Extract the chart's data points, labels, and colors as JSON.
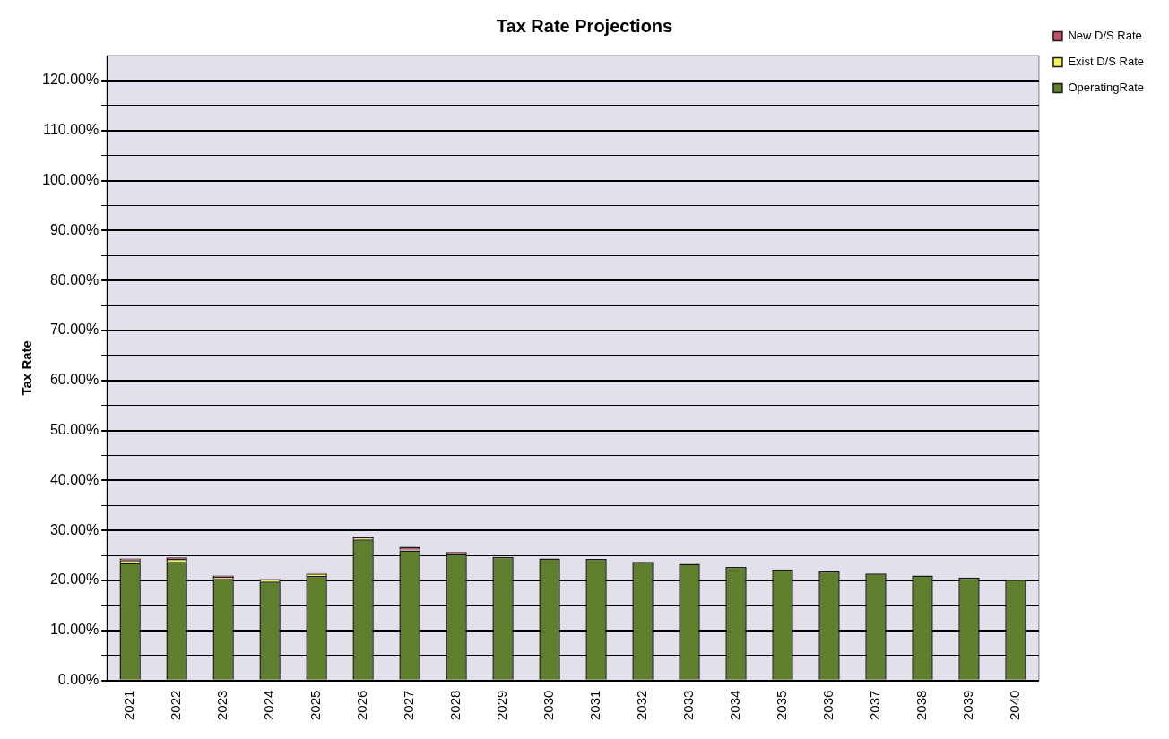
{
  "chart_data": {
    "type": "bar",
    "title": "Tax Rate Projections",
    "ylabel": "Tax Rate",
    "categories": [
      "2021",
      "2022",
      "2023",
      "2024",
      "2025",
      "2026",
      "2027",
      "2028",
      "2029",
      "2030",
      "2031",
      "2032",
      "2033",
      "2034",
      "2035",
      "2036",
      "2037",
      "2038",
      "2039",
      "2040"
    ],
    "stacked": true,
    "series": [
      {
        "name": "OperatingRate",
        "color": "#5f7f2e",
        "values": [
          23.5,
          23.7,
          20.3,
          19.8,
          20.9,
          28.2,
          26.0,
          25.3,
          24.7,
          24.4,
          24.3,
          23.7,
          23.3,
          22.7,
          22.2,
          21.8,
          21.4,
          21.0,
          20.6,
          20.2
        ]
      },
      {
        "name": "Exist D/S Rate",
        "color": "#f2f25a",
        "values": [
          0.6,
          0.6,
          0.4,
          0.4,
          0.4,
          0.4,
          0.2,
          null,
          0,
          0,
          0,
          0,
          0,
          0,
          0,
          0,
          0,
          0,
          0,
          0
        ]
      },
      {
        "name": "New D/S Rate",
        "color": "#c0506a",
        "values": [
          0.3,
          0.3,
          0.3,
          0.1,
          0.2,
          0.2,
          0.5,
          0.4,
          0,
          0,
          0,
          0,
          0,
          0,
          0,
          0,
          0,
          0,
          0,
          0
        ]
      }
    ],
    "ylim": [
      0,
      125
    ],
    "yticks": [
      {
        "value": 0,
        "label": "0.00%"
      },
      {
        "value": 5,
        "label": null
      },
      {
        "value": 10,
        "label": "10.00%"
      },
      {
        "value": 15,
        "label": null
      },
      {
        "value": 20,
        "label": "20.00%"
      },
      {
        "value": 25,
        "label": null
      },
      {
        "value": 30,
        "label": "30.00%"
      },
      {
        "value": 35,
        "label": null
      },
      {
        "value": 40,
        "label": "40.00%"
      },
      {
        "value": 45,
        "label": null
      },
      {
        "value": 50,
        "label": "50.00%"
      },
      {
        "value": 55,
        "label": null
      },
      {
        "value": 60,
        "label": "60.00%"
      },
      {
        "value": 65,
        "label": null
      },
      {
        "value": 70,
        "label": "70.00%"
      },
      {
        "value": 75,
        "label": null
      },
      {
        "value": 80,
        "label": "80.00%"
      },
      {
        "value": 85,
        "label": null
      },
      {
        "value": 90,
        "label": "90.00%"
      },
      {
        "value": 95,
        "label": null
      },
      {
        "value": 100,
        "label": "100.00%"
      },
      {
        "value": 105,
        "label": null
      },
      {
        "value": 110,
        "label": "110.00%"
      },
      {
        "value": 115,
        "label": null
      },
      {
        "value": 120,
        "label": "120.00%"
      }
    ],
    "grid": "y",
    "legend": "top right"
  }
}
